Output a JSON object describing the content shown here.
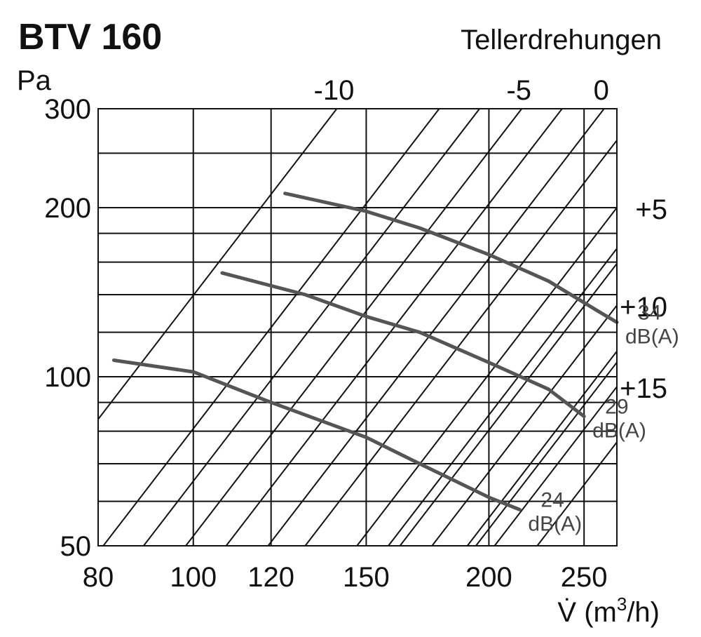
{
  "title": "BTV 160",
  "top_axis_title": "Tellerdrehungen",
  "y_unit": "Pa",
  "x_unit_prefix": "V̇ (m",
  "x_unit_sup": "3",
  "x_unit_suffix": "/h)",
  "chart_data": {
    "type": "line",
    "title": "BTV 160",
    "xlabel": "V̇ (m3/h)",
    "ylabel": "Pa",
    "x_scale": "log",
    "y_scale": "log",
    "xlim": [
      80,
      270
    ],
    "ylim": [
      50,
      300
    ],
    "x_ticks": [
      80,
      100,
      120,
      150,
      200,
      250
    ],
    "x_tick_labels": [
      "80",
      "100",
      "120",
      "150",
      "200",
      "250"
    ],
    "y_ticks": [
      50,
      100,
      200,
      300
    ],
    "y_tick_labels": [
      "50",
      "100",
      "200",
      "300"
    ],
    "x_grid_values": [
      80,
      100,
      120,
      150,
      200,
      250
    ],
    "y_grid_values": [
      50,
      60,
      70,
      80,
      90,
      100,
      120,
      140,
      160,
      180,
      200,
      250
    ],
    "grid": true,
    "setting_lines": [
      {
        "label": "-10",
        "x_top": 140
      },
      {
        "label": "",
        "x_top": 178
      },
      {
        "label": "-5",
        "x_top": 216
      },
      {
        "label": "0",
        "x_top": 262
      },
      {
        "label": "+5",
        "x_bottom": 270,
        "y_right": 200
      },
      {
        "label": "",
        "x_bottom": 270,
        "y_right": 159
      },
      {
        "label": "+10",
        "x_bottom": 270,
        "y_right": 134
      },
      {
        "label": "",
        "x_bottom": 270,
        "y_right": 111
      },
      {
        "label": "+15",
        "x_bottom": 270,
        "y_right": 96
      },
      {
        "label": "",
        "x_start": 89,
        "y_start": 50
      },
      {
        "label": "",
        "x_start": 108,
        "y_start": 50
      },
      {
        "label": "",
        "x_start": 130,
        "y_start": 50
      },
      {
        "label": "",
        "x_start": 158,
        "y_start": 50
      },
      {
        "label": "",
        "x_start": 194,
        "y_start": 50
      },
      {
        "label": "",
        "x_start": 224,
        "y_start": 50
      }
    ],
    "series": [
      {
        "name": "24 dB(A)",
        "label_lines": [
          "24",
          "dB(A)"
        ],
        "points": [
          [
            83,
            107
          ],
          [
            100,
            102
          ],
          [
            120,
            90
          ],
          [
            150,
            78
          ],
          [
            170,
            70
          ],
          [
            200,
            61
          ],
          [
            215,
            58
          ]
        ]
      },
      {
        "name": "29 dB(A)",
        "label_lines": [
          "29",
          "dB(A)"
        ],
        "points": [
          [
            107,
            153
          ],
          [
            130,
            140
          ],
          [
            150,
            128
          ],
          [
            170,
            120
          ],
          [
            200,
            106
          ],
          [
            230,
            95
          ],
          [
            250,
            85
          ]
        ]
      },
      {
        "name": "34 dB(A)",
        "label_lines": [
          "34",
          "dB(A)"
        ],
        "points": [
          [
            124,
            212
          ],
          [
            150,
            197
          ],
          [
            170,
            184
          ],
          [
            200,
            165
          ],
          [
            230,
            148
          ],
          [
            260,
            130
          ],
          [
            270,
            125
          ]
        ]
      }
    ]
  },
  "colors": {
    "grid": "#111111",
    "curve": "#555555",
    "text": "#111111",
    "db_label": "#444444"
  }
}
